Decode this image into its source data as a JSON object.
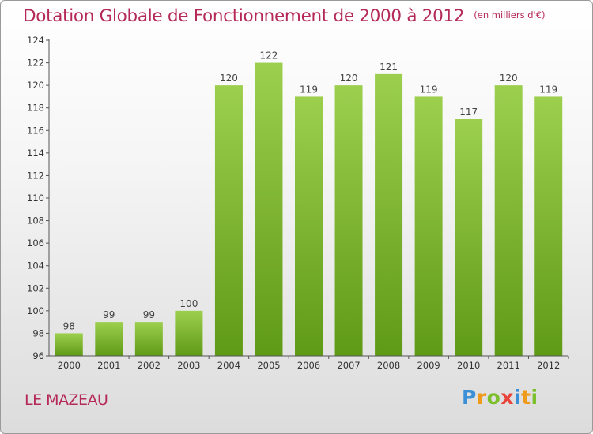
{
  "title": "Dotation Globale de Fonctionnement de 2000 à 2012",
  "subtitle": "(en milliers d'€)",
  "commune": "LE MAZEAU",
  "logo": {
    "text": "Proxiti",
    "letters": [
      "P",
      "r",
      "o",
      "x",
      "i",
      "t",
      "i"
    ]
  },
  "colors": {
    "accent": "#b5295a",
    "bar_top": "#9ccf4e",
    "bar_bottom": "#5f9a16",
    "axis": "#555555"
  },
  "chart_data": {
    "type": "bar",
    "title": "Dotation Globale de Fonctionnement de 2000 à 2012",
    "subtitle": "(en milliers d'€)",
    "xlabel": "",
    "ylabel": "",
    "categories": [
      "2000",
      "2001",
      "2002",
      "2003",
      "2004",
      "2005",
      "2006",
      "2007",
      "2008",
      "2009",
      "2010",
      "2011",
      "2012"
    ],
    "values": [
      98,
      99,
      99,
      100,
      120,
      122,
      119,
      120,
      121,
      119,
      117,
      120,
      119
    ],
    "ylim": [
      96,
      124
    ],
    "yticks": [
      96,
      98,
      100,
      102,
      104,
      106,
      108,
      110,
      112,
      114,
      116,
      118,
      120,
      122,
      124
    ],
    "grid": false,
    "data_labels": true
  }
}
